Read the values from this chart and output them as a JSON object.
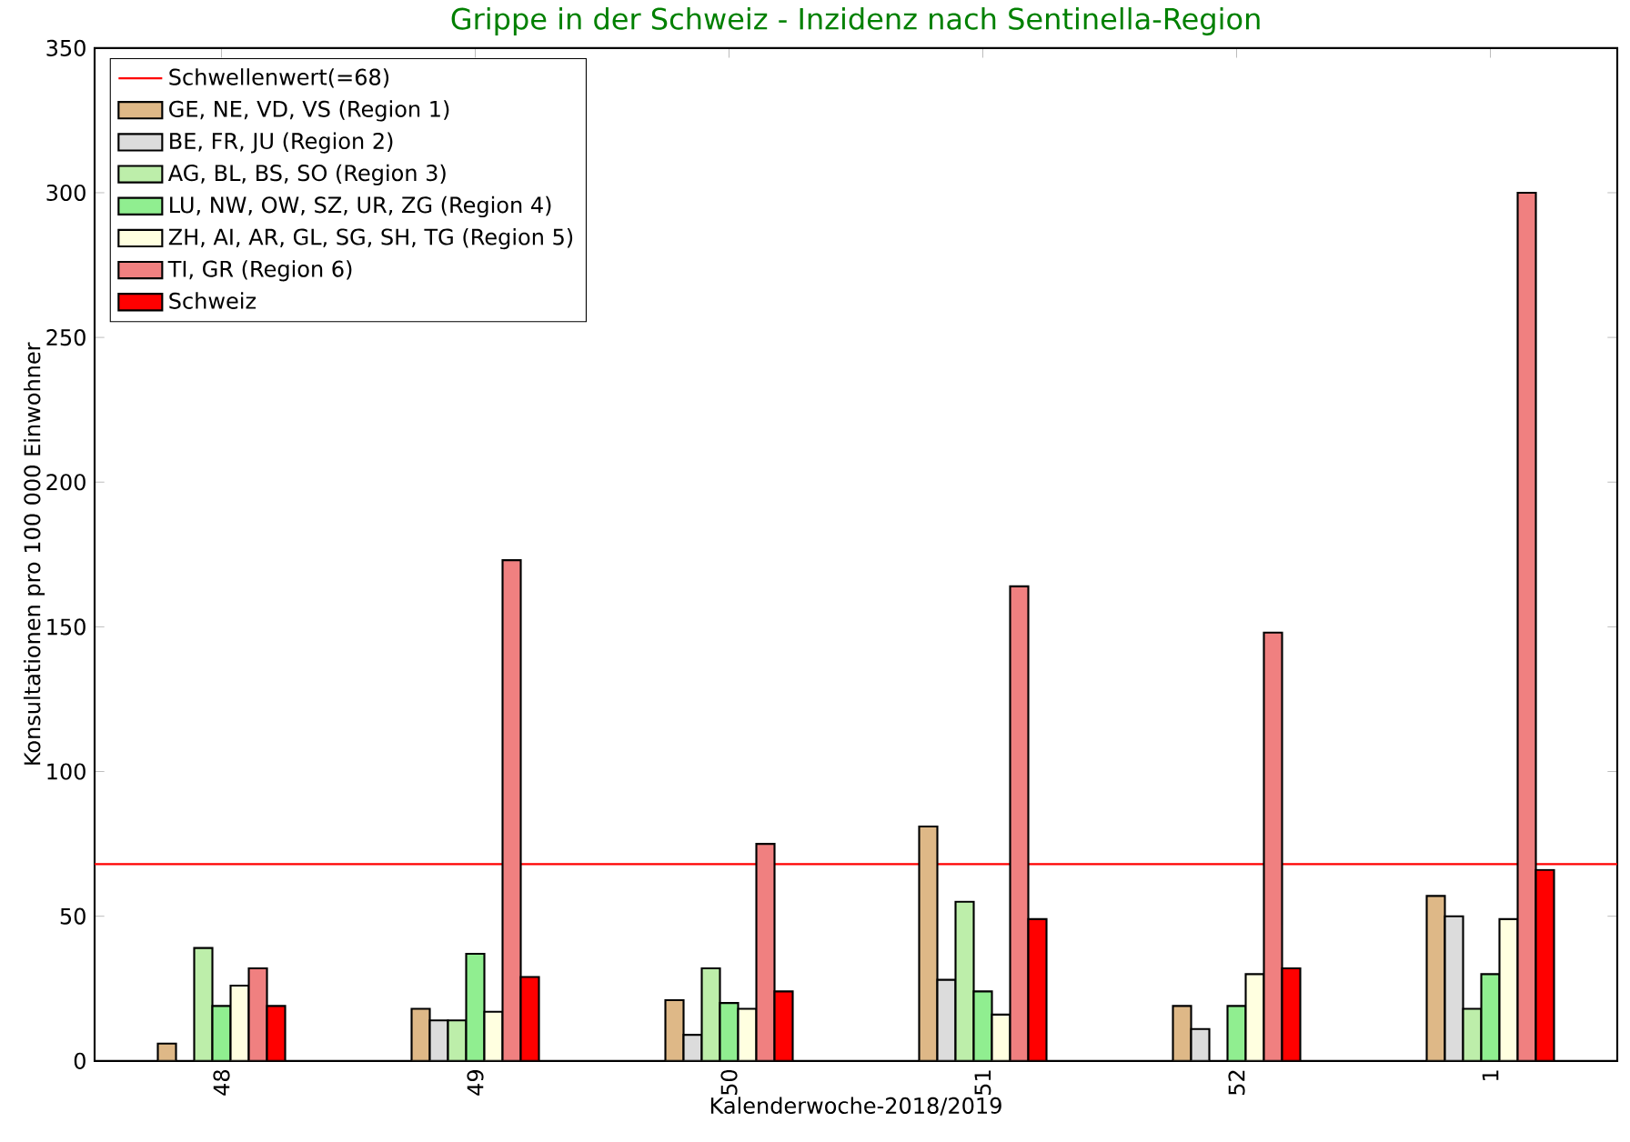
{
  "chart_data": {
    "type": "bar",
    "title": "Grippe in der Schweiz - Inzidenz nach Sentinella-Region",
    "xlabel": "Kalenderwoche-2018/2019",
    "ylabel": "Konsultationen pro 100 000 Einwohner",
    "categories": [
      "48",
      "49",
      "50",
      "51",
      "52",
      "1"
    ],
    "series": [
      {
        "name": "GE, NE, VD, VS (Region 1)",
        "color": "#deb887",
        "values": [
          6,
          18,
          21,
          81,
          19,
          57
        ]
      },
      {
        "name": "BE, FR, JU (Region 2)",
        "color": "#dcdcdc",
        "values": [
          null,
          14,
          9,
          28,
          11,
          50
        ]
      },
      {
        "name": "AG, BL, BS, SO (Region 3)",
        "color": "#bdeeaa",
        "values": [
          39,
          14,
          32,
          55,
          null,
          18
        ]
      },
      {
        "name": "LU, NW, OW, SZ, UR, ZG (Region 4)",
        "color": "#90ee90",
        "values": [
          19,
          37,
          20,
          24,
          19,
          30
        ]
      },
      {
        "name": "ZH, AI, AR, GL, SG, SH, TG (Region 5)",
        "color": "#ffffe0",
        "values": [
          26,
          17,
          18,
          16,
          30,
          49
        ]
      },
      {
        "name": "TI, GR (Region 6)",
        "color": "#f08080",
        "values": [
          32,
          173,
          75,
          164,
          148,
          300
        ]
      },
      {
        "name": "Schweiz",
        "color": "#ff0000",
        "values": [
          19,
          29,
          24,
          49,
          32,
          66
        ]
      }
    ],
    "ref_lines": [
      {
        "axis": "y",
        "value": 68,
        "label": "Schwellenwert(=68)",
        "color": "#ff0000"
      }
    ],
    "ylim": [
      0,
      350
    ],
    "yticks": [
      0,
      50,
      100,
      150,
      200,
      250,
      300,
      350
    ],
    "legend": "top left"
  }
}
